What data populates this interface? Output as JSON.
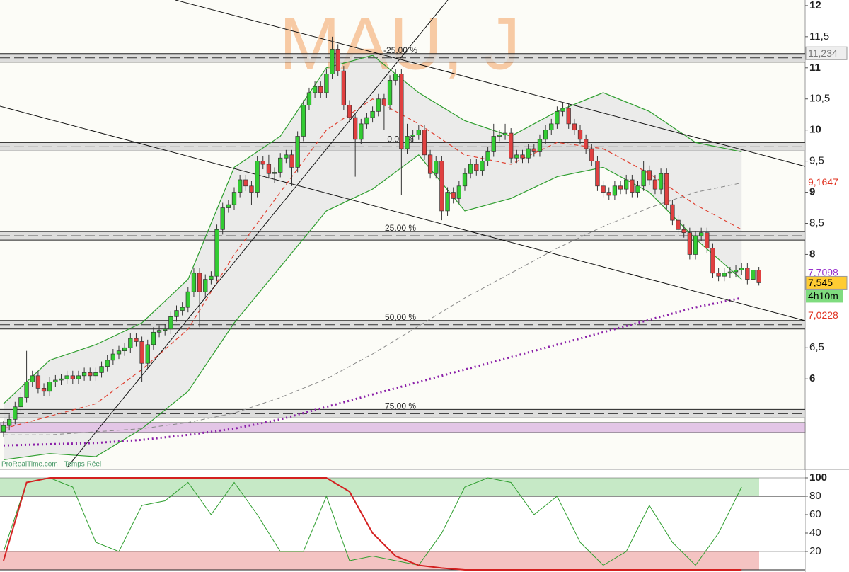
{
  "chart_data": [
    {
      "type": "candlestick",
      "watermark": "MAU, J",
      "source": "ProRealTime.com - Temps Réel",
      "ylim": [
        4.58,
        12.09
      ],
      "yticks": [
        12,
        {
          "value": 11.5,
          "label": "11,5"
        },
        11,
        {
          "value": 10.5,
          "label": "10,5"
        },
        10,
        {
          "value": 9.5,
          "label": "9,5"
        },
        9,
        {
          "value": 8.5,
          "label": "8,5"
        },
        8,
        {
          "value": 6.5,
          "label": "6,5"
        },
        6
      ],
      "up_color": "#33cc33",
      "down_color": "#e04040",
      "candles": [
        [
          5.15,
          5.33,
          5.07,
          5.25
        ],
        [
          5.25,
          5.43,
          5.17,
          5.35
        ],
        [
          5.35,
          5.63,
          5.27,
          5.55
        ],
        [
          5.55,
          5.78,
          5.47,
          5.7
        ],
        [
          5.7,
          6.45,
          5.62,
          5.95
        ],
        [
          5.95,
          6.13,
          5.87,
          6.05
        ],
        [
          6.05,
          6.13,
          5.77,
          5.85
        ],
        [
          5.85,
          5.93,
          5.72,
          5.8
        ],
        [
          5.8,
          6.03,
          5.72,
          5.95
        ],
        [
          5.95,
          6.06,
          5.87,
          5.98
        ],
        [
          5.98,
          6.08,
          5.9,
          6.0
        ],
        [
          6.0,
          6.13,
          5.92,
          6.05
        ],
        [
          6.05,
          6.13,
          5.92,
          6.0
        ],
        [
          6.0,
          6.13,
          5.92,
          6.05
        ],
        [
          6.05,
          6.18,
          5.97,
          6.1
        ],
        [
          6.1,
          6.18,
          5.97,
          6.05
        ],
        [
          6.05,
          6.18,
          5.97,
          6.1
        ],
        [
          6.1,
          6.28,
          6.02,
          6.2
        ],
        [
          6.2,
          6.38,
          6.12,
          6.3
        ],
        [
          6.3,
          6.48,
          6.22,
          6.4
        ],
        [
          6.4,
          6.53,
          6.32,
          6.45
        ],
        [
          6.45,
          6.58,
          6.37,
          6.5
        ],
        [
          6.5,
          6.73,
          6.42,
          6.65
        ],
        [
          6.65,
          6.73,
          6.52,
          6.6
        ],
        [
          6.6,
          6.68,
          5.95,
          6.25
        ],
        [
          6.25,
          6.63,
          6.17,
          6.55
        ],
        [
          6.55,
          6.83,
          6.47,
          6.75
        ],
        [
          6.75,
          6.86,
          6.67,
          6.78
        ],
        [
          6.78,
          6.88,
          6.7,
          6.8
        ],
        [
          6.8,
          7.08,
          6.72,
          7.0
        ],
        [
          7.0,
          7.18,
          6.92,
          7.1
        ],
        [
          7.1,
          7.23,
          7.02,
          7.15
        ],
        [
          7.15,
          7.48,
          7.07,
          7.4
        ],
        [
          7.4,
          7.78,
          7.32,
          7.7
        ],
        [
          7.7,
          7.78,
          6.83,
          7.4
        ],
        [
          7.4,
          7.68,
          7.32,
          7.6
        ],
        [
          7.6,
          7.73,
          7.52,
          7.65
        ],
        [
          7.65,
          8.48,
          7.57,
          8.4
        ],
        [
          8.4,
          8.83,
          8.32,
          8.75
        ],
        [
          8.75,
          8.88,
          8.67,
          8.8
        ],
        [
          8.8,
          9.08,
          8.72,
          9.0
        ],
        [
          9.0,
          9.28,
          8.92,
          9.2
        ],
        [
          9.2,
          9.28,
          9.02,
          9.1
        ],
        [
          9.1,
          9.18,
          8.8,
          9.0
        ],
        [
          9.0,
          9.58,
          8.92,
          9.5
        ],
        [
          9.5,
          9.58,
          9.37,
          9.45
        ],
        [
          9.45,
          9.6,
          9.22,
          9.3
        ],
        [
          9.3,
          9.4,
          9.15,
          9.32
        ],
        [
          9.32,
          9.63,
          9.24,
          9.55
        ],
        [
          9.55,
          9.68,
          9.47,
          9.6
        ],
        [
          9.6,
          9.68,
          9.1,
          9.4
        ],
        [
          9.4,
          9.98,
          9.32,
          9.9
        ],
        [
          9.9,
          10.48,
          9.82,
          10.4
        ],
        [
          10.4,
          10.68,
          10.32,
          10.6
        ],
        [
          10.6,
          10.78,
          10.52,
          10.7
        ],
        [
          10.7,
          10.78,
          10.52,
          10.6
        ],
        [
          10.6,
          10.98,
          10.52,
          10.9
        ],
        [
          10.9,
          11.5,
          10.82,
          11.3
        ],
        [
          11.3,
          11.38,
          10.87,
          10.95
        ],
        [
          10.95,
          11.03,
          10.32,
          10.4
        ],
        [
          10.4,
          10.48,
          10.12,
          10.2
        ],
        [
          10.2,
          10.28,
          9.25,
          9.85
        ],
        [
          9.85,
          10.18,
          9.77,
          10.1
        ],
        [
          10.1,
          10.28,
          10.02,
          10.2
        ],
        [
          10.2,
          10.38,
          10.12,
          10.3
        ],
        [
          10.3,
          10.58,
          10.22,
          10.5
        ],
        [
          10.5,
          10.58,
          10.0,
          10.4
        ],
        [
          10.4,
          10.88,
          10.32,
          10.8
        ],
        [
          10.8,
          10.98,
          10.72,
          10.9
        ],
        [
          10.9,
          10.98,
          8.95,
          9.7
        ],
        [
          9.7,
          10.1,
          9.62,
          9.9
        ],
        [
          9.9,
          10.0,
          9.8,
          9.92
        ],
        [
          9.92,
          10.08,
          9.84,
          10.0
        ],
        [
          10.0,
          10.08,
          9.52,
          9.6
        ],
        [
          9.6,
          9.68,
          9.22,
          9.3
        ],
        [
          9.3,
          9.58,
          9.22,
          9.5
        ],
        [
          9.5,
          9.58,
          8.55,
          8.7
        ],
        [
          8.7,
          9.08,
          8.62,
          9.0
        ],
        [
          9.0,
          9.08,
          8.82,
          8.9
        ],
        [
          8.9,
          9.18,
          8.82,
          9.1
        ],
        [
          9.1,
          9.38,
          9.02,
          9.3
        ],
        [
          9.3,
          9.53,
          9.22,
          9.45
        ],
        [
          9.45,
          9.53,
          9.27,
          9.35
        ],
        [
          9.35,
          9.58,
          9.27,
          9.5
        ],
        [
          9.5,
          9.73,
          9.42,
          9.65
        ],
        [
          9.65,
          10.1,
          9.57,
          9.9
        ],
        [
          9.9,
          10.0,
          9.82,
          9.92
        ],
        [
          9.92,
          10.1,
          9.84,
          9.95
        ],
        [
          9.95,
          10.03,
          9.47,
          9.55
        ],
        [
          9.55,
          9.68,
          9.47,
          9.6
        ],
        [
          9.6,
          9.68,
          9.47,
          9.55
        ],
        [
          9.55,
          9.78,
          9.47,
          9.7
        ],
        [
          9.7,
          9.78,
          9.57,
          9.65
        ],
        [
          9.65,
          9.93,
          9.57,
          9.85
        ],
        [
          9.85,
          10.08,
          9.77,
          10.0
        ],
        [
          10.0,
          10.18,
          9.92,
          10.1
        ],
        [
          10.1,
          10.38,
          10.02,
          10.3
        ],
        [
          10.3,
          10.43,
          10.22,
          10.35
        ],
        [
          10.35,
          10.43,
          10.02,
          10.1
        ],
        [
          10.1,
          10.18,
          9.92,
          10.0
        ],
        [
          10.0,
          10.08,
          9.77,
          9.85
        ],
        [
          9.85,
          9.93,
          9.62,
          9.7
        ],
        [
          9.7,
          9.78,
          9.42,
          9.5
        ],
        [
          9.5,
          9.58,
          9.02,
          9.1
        ],
        [
          9.1,
          9.18,
          8.92,
          9.0
        ],
        [
          9.0,
          9.08,
          8.87,
          8.95
        ],
        [
          8.95,
          9.18,
          8.87,
          9.1
        ],
        [
          9.1,
          9.18,
          8.97,
          9.05
        ],
        [
          9.05,
          9.28,
          8.97,
          9.2
        ],
        [
          9.2,
          9.28,
          8.92,
          9.0
        ],
        [
          9.0,
          9.18,
          8.92,
          9.1
        ],
        [
          9.1,
          9.5,
          9.02,
          9.35
        ],
        [
          9.35,
          9.43,
          9.12,
          9.2
        ],
        [
          9.2,
          9.28,
          8.97,
          9.05
        ],
        [
          9.05,
          9.38,
          8.97,
          9.3
        ],
        [
          9.3,
          9.38,
          8.72,
          8.8
        ],
        [
          8.8,
          8.88,
          8.47,
          8.55
        ],
        [
          8.55,
          8.63,
          8.32,
          8.4
        ],
        [
          8.4,
          8.48,
          8.27,
          8.35
        ],
        [
          8.35,
          8.43,
          7.92,
          8.0
        ],
        [
          8.0,
          8.38,
          7.92,
          8.3
        ],
        [
          8.3,
          8.43,
          8.22,
          8.35
        ],
        [
          8.35,
          8.43,
          8.02,
          8.1
        ],
        [
          8.1,
          8.18,
          7.62,
          7.7
        ],
        [
          7.7,
          7.78,
          7.57,
          7.65
        ],
        [
          7.65,
          7.78,
          7.57,
          7.7
        ],
        [
          7.7,
          7.8,
          7.62,
          7.72
        ],
        [
          7.72,
          7.83,
          7.64,
          7.75
        ],
        [
          7.75,
          7.86,
          7.67,
          7.78
        ],
        [
          7.78,
          7.86,
          7.52,
          7.6
        ],
        [
          7.6,
          7.83,
          7.52,
          7.75
        ],
        [
          7.75,
          7.8,
          7.5,
          7.545
        ]
      ],
      "overlay_x": [
        0,
        8,
        16,
        24,
        32,
        40,
        48,
        56,
        64,
        72,
        80,
        88,
        96,
        104,
        112,
        120,
        128
      ],
      "overlays": [
        {
          "color": "#2e9e2e",
          "dash": "none",
          "width": 1.2,
          "values": [
            5.6,
            6.3,
            6.55,
            6.9,
            7.6,
            9.4,
            9.9,
            11.0,
            11.2,
            10.6,
            10.15,
            9.9,
            10.3,
            10.6,
            10.3,
            9.8,
            9.65
          ]
        },
        {
          "color": "#2e9e2e",
          "dash": "none",
          "width": 1.2,
          "values": [
            4.7,
            4.8,
            4.75,
            5.2,
            5.8,
            6.9,
            7.8,
            8.7,
            9.05,
            9.6,
            8.7,
            8.9,
            9.25,
            9.4,
            9.0,
            8.25,
            7.6
          ]
        },
        {
          "color": "#e04030",
          "dash": "6 4",
          "width": 1.2,
          "values": [
            5.2,
            5.4,
            5.6,
            6.15,
            6.8,
            8.0,
            9.0,
            10.0,
            10.5,
            10.1,
            9.6,
            9.45,
            9.8,
            9.7,
            9.3,
            8.8,
            8.4
          ]
        },
        {
          "color": "#888888",
          "dash": "6 4",
          "width": 1,
          "values": [
            5.1,
            5.1,
            5.15,
            5.2,
            5.3,
            5.45,
            5.7,
            6.0,
            6.4,
            6.85,
            7.3,
            7.7,
            8.1,
            8.45,
            8.75,
            9.0,
            9.15
          ]
        },
        {
          "color": "#8a1fa8",
          "dash": "2 4",
          "width": 3,
          "values": [
            4.93,
            4.95,
            4.97,
            5.02,
            5.1,
            5.2,
            5.35,
            5.55,
            5.75,
            5.95,
            6.15,
            6.35,
            6.55,
            6.75,
            6.95,
            7.15,
            7.3
          ]
        }
      ],
      "cloud_color": "#e6e6e6",
      "levels": [
        {
          "value": 11.16,
          "label": "-25,00 %"
        },
        {
          "value": 9.73,
          "label": "0,00 %"
        },
        {
          "value": 8.3,
          "label": "25,00 %"
        },
        {
          "value": 6.87,
          "label": "50,00 %"
        },
        {
          "value": 5.44,
          "label": "75,00 %"
        }
      ],
      "zones": [
        {
          "from": 5.14,
          "to": 5.3,
          "color": "#e3c6e6"
        }
      ],
      "price_labels": [
        {
          "value": 11.234,
          "label": "11,234",
          "color": "#777777",
          "bg": "#eeeeee"
        },
        {
          "value": 9.1647,
          "label": "9,1647",
          "color": "#e0301e",
          "bg": "#ffffff"
        },
        {
          "value": 7.7098,
          "label": "7,7098",
          "color": "#9933cc",
          "bg": "#ffffff"
        },
        {
          "value": 7.545,
          "label": "7,545",
          "color": "#000000",
          "bg": "#ffcc33"
        },
        {
          "value": 7.0228,
          "label": "7,0228",
          "color": "#e0301e",
          "bg": "#ffffff"
        }
      ],
      "countdown": {
        "label": "4h10m",
        "bg": "#7fdc7f"
      }
    },
    {
      "type": "line",
      "ylim": [
        0,
        100
      ],
      "yticks": [
        100,
        80,
        60,
        40,
        20
      ],
      "x": [
        0,
        4,
        8,
        12,
        16,
        20,
        24,
        28,
        32,
        36,
        40,
        44,
        48,
        52,
        56,
        60,
        64,
        68,
        72,
        76,
        80,
        84,
        88,
        92,
        96,
        100,
        104,
        108,
        112,
        116,
        120,
        124,
        128
      ],
      "zones": [
        {
          "from": 80,
          "to": 100,
          "color": "#5cbf5c"
        },
        {
          "from": 0,
          "to": 20,
          "color": "#e0544f"
        }
      ],
      "series": [
        {
          "color": "#2e9e2e",
          "width": 1,
          "values": [
            20,
            95,
            100,
            90,
            30,
            20,
            70,
            75,
            95,
            60,
            95,
            60,
            20,
            20,
            80,
            10,
            15,
            10,
            5,
            40,
            90,
            100,
            95,
            60,
            80,
            30,
            5,
            20,
            70,
            30,
            5,
            40,
            90
          ]
        },
        {
          "color": "#d42020",
          "width": 2,
          "values": [
            10,
            95,
            100,
            100,
            100,
            100,
            100,
            100,
            100,
            100,
            100,
            100,
            100,
            100,
            100,
            85,
            40,
            15,
            5,
            2,
            0,
            0,
            0,
            0,
            0,
            0,
            0,
            0,
            0,
            0,
            0,
            0,
            0
          ]
        }
      ]
    }
  ]
}
